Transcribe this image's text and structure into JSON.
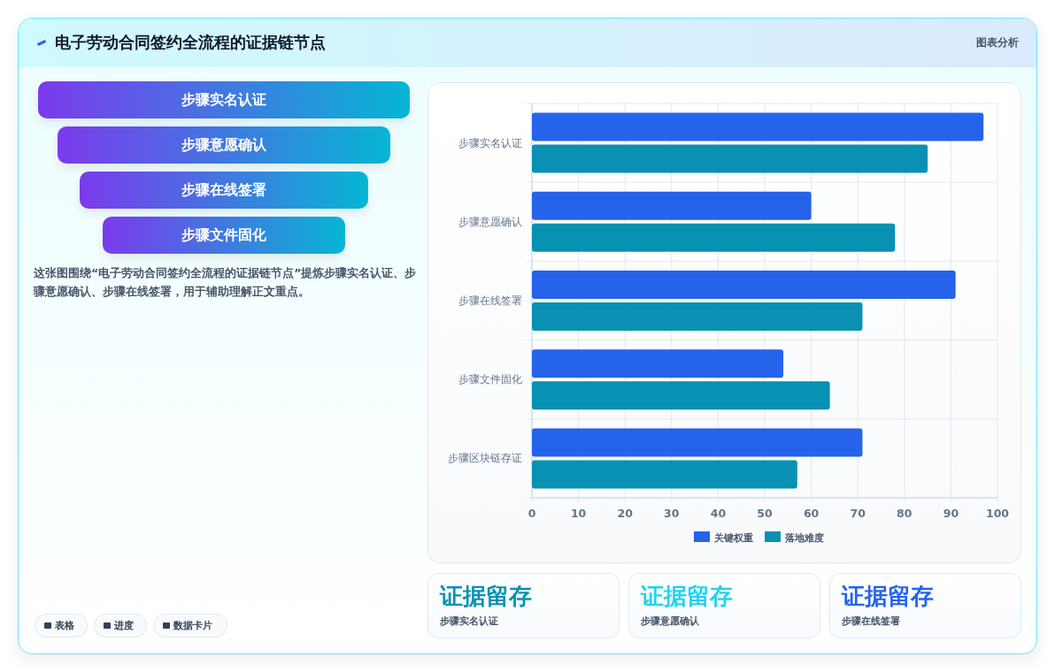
{
  "chart_data": [
    {
      "type": "other",
      "title": "电子劳动合同签约全流程的证据链节点",
      "subtitle": "图表分析",
      "categories": [
        "步骤实名认证",
        "步骤意愿确认",
        "步骤在线签署",
        "步骤文件固化"
      ],
      "annotations": [
        "这张图围绕“电子劳动合同签约全流程的证据链节点”提炼步骤实名认证、步骤意愿确认、步骤在线签署，用于辅助理解正文重点。",
        "表格",
        "进度",
        "数据卡片"
      ]
    },
    {
      "type": "bar",
      "orientation": "horizontal",
      "categories": [
        "步骤实名认证",
        "步骤意愿确认",
        "步骤在线签署",
        "步骤文件固化",
        "步骤区块链存证"
      ],
      "series": [
        {
          "name": "关键权重",
          "color": "#2563eb",
          "values": [
            97,
            60,
            91,
            54,
            71
          ]
        },
        {
          "name": "落地难度",
          "color": "#0891b2",
          "values": [
            85,
            78,
            71,
            64,
            57
          ]
        }
      ],
      "xlim": [
        0,
        100
      ],
      "xticks": [
        0,
        10,
        20,
        30,
        40,
        50,
        60,
        70,
        80,
        90,
        100
      ],
      "grid": true,
      "legend": "bottom"
    },
    {
      "type": "other",
      "categories": [
        "证据留存",
        "证据留存",
        "证据留存"
      ],
      "colors": [
        "#0891b2",
        "#22d3ee",
        "#2563eb"
      ],
      "annotations": [
        "步骤实名认证",
        "步骤意愿确认",
        "步骤在线签署"
      ]
    }
  ]
}
